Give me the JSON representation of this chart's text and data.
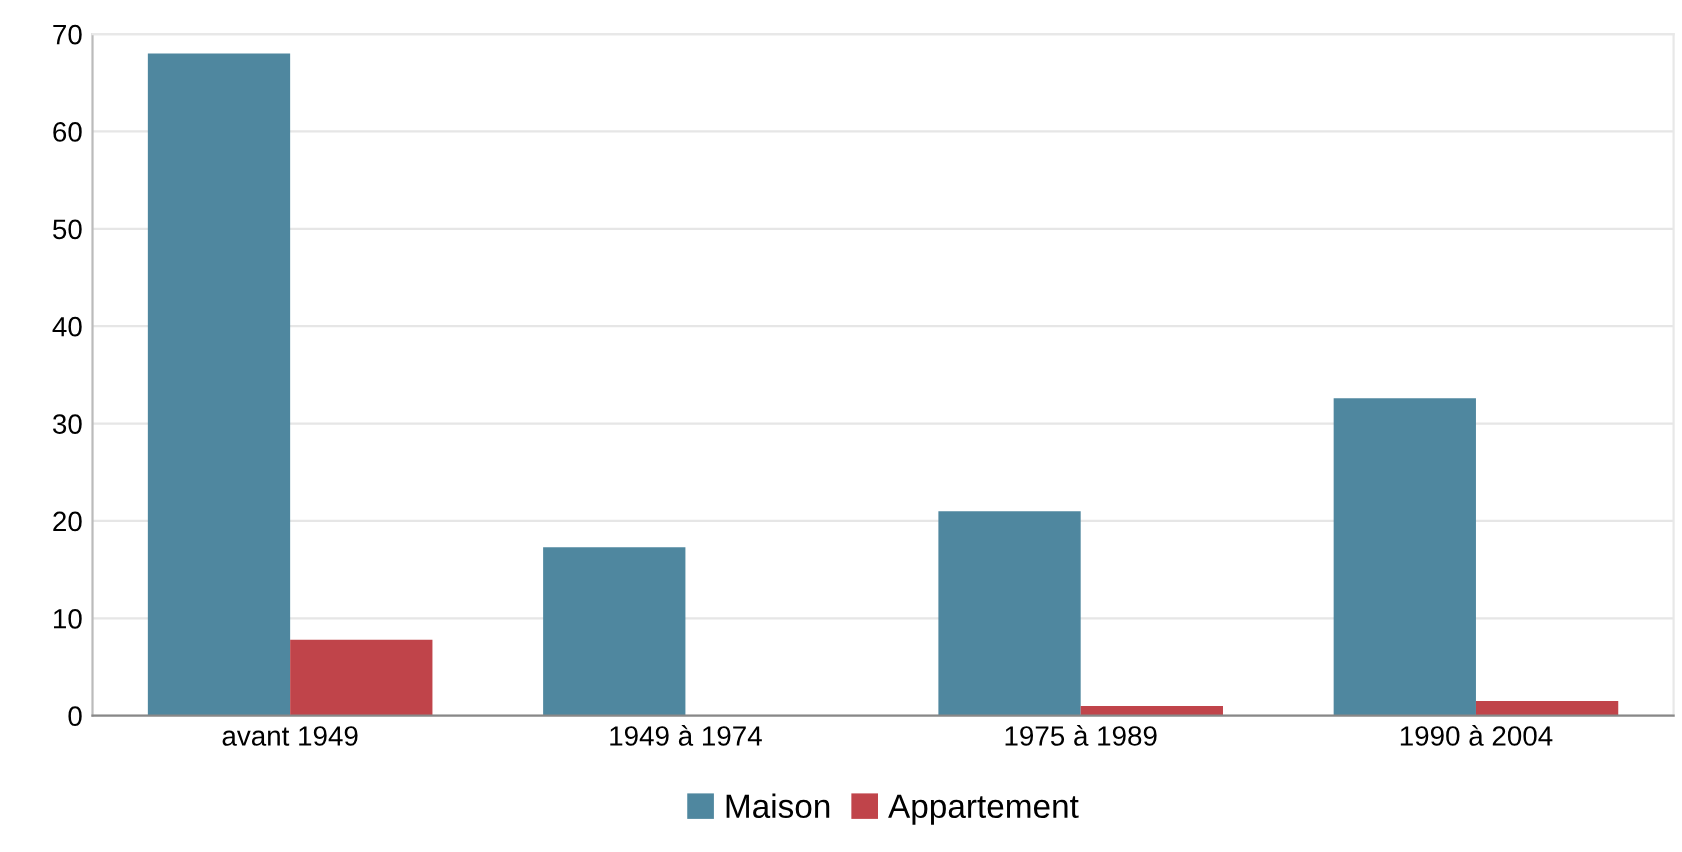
{
  "chart_data": {
    "type": "bar",
    "categories": [
      "avant 1949",
      "1949 à 1974",
      "1975 à 1989",
      "1990 à 2004"
    ],
    "series": [
      {
        "name": "Maison",
        "color": "#4f879f",
        "values": [
          68,
          17.3,
          21,
          32.6
        ]
      },
      {
        "name": "Appartement",
        "color": "#c0444a",
        "values": [
          7.8,
          0,
          1,
          1.5
        ]
      }
    ],
    "ylim": [
      0,
      70
    ],
    "yticks": [
      0,
      10,
      20,
      30,
      40,
      50,
      60,
      70
    ],
    "grid": "y",
    "legend": "bottom"
  }
}
